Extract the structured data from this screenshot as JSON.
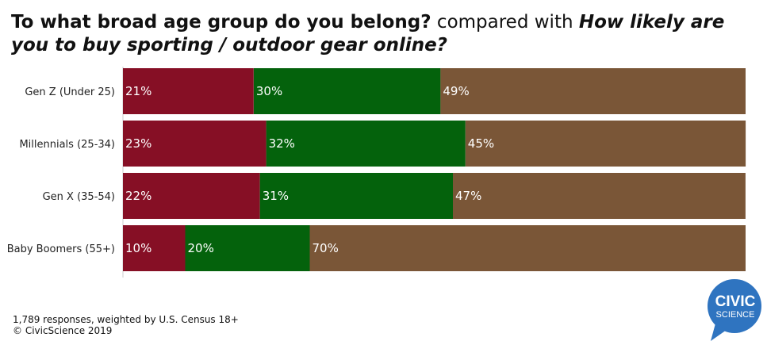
{
  "title": {
    "q1": "To what broad age group do you belong?",
    "connector": " compared with ",
    "q2": "How likely are you to buy sporting / outdoor gear online?"
  },
  "chart_data": {
    "type": "bar",
    "orientation": "horizontal",
    "stacked": true,
    "normalized_percent": true,
    "categories": [
      "Gen Z (Under 25)",
      "Millennials (25-34)",
      "Gen X (35-54)",
      "Baby Boomers (55+)"
    ],
    "series": [
      {
        "values": [
          21,
          23,
          22,
          10
        ],
        "color": "#860f25"
      },
      {
        "values": [
          30,
          32,
          31,
          20
        ],
        "color": "#04620c"
      },
      {
        "values": [
          49,
          45,
          47,
          70
        ],
        "color": "#7a5637"
      }
    ],
    "value_labels": [
      [
        "21%",
        "30%",
        "49%"
      ],
      [
        "23%",
        "32%",
        "45%"
      ],
      [
        "22%",
        "31%",
        "47%"
      ],
      [
        "10%",
        "20%",
        "70%"
      ]
    ],
    "xlim": [
      0,
      100
    ],
    "legend": "none",
    "grid": false
  },
  "footer": {
    "line1": "1,789 responses, weighted by U.S. Census 18+",
    "line2": "© CivicScience 2019"
  },
  "logo": {
    "line1": "CIVIC",
    "line2": "SCIENCE",
    "color": "#2f74c0"
  }
}
